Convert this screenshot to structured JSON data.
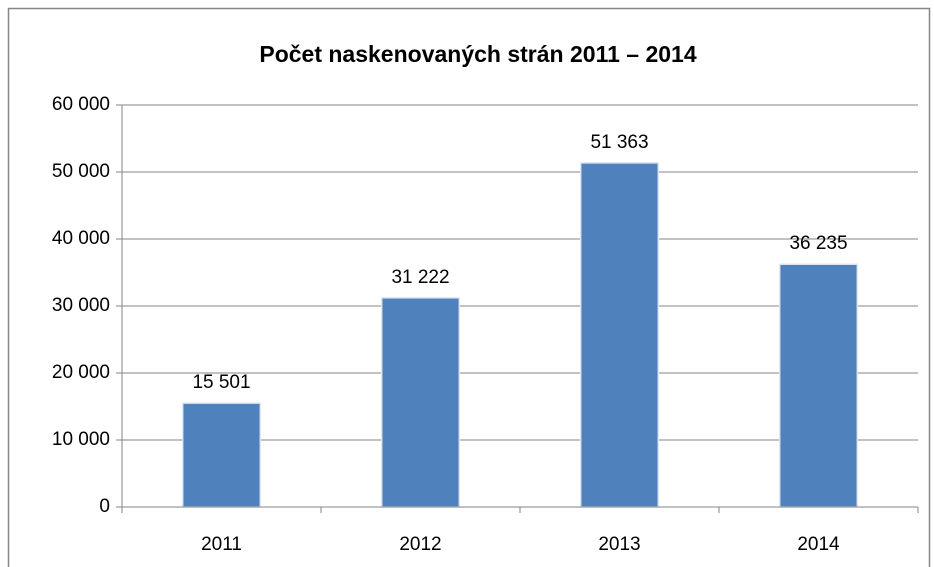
{
  "chart_data": {
    "type": "bar",
    "title": "Počet naskenovaných strán 2011 – 2014",
    "categories": [
      "2011",
      "2012",
      "2013",
      "2014"
    ],
    "values": [
      15501,
      31222,
      51363,
      36235
    ],
    "value_labels": [
      "15 501",
      "31 222",
      "51 363",
      "36 235"
    ],
    "color": "#4f81bd",
    "ylim": [
      0,
      60000
    ],
    "yticks": [
      0,
      {
        "value": 10000,
        "label": "10 000"
      },
      {
        "value": 20000,
        "label": "20 000"
      },
      {
        "value": 30000,
        "label": "30 000"
      },
      {
        "value": 40000,
        "label": "40 000"
      },
      {
        "value": 50000,
        "label": "50 000"
      },
      {
        "value": 60000,
        "label": "60 000"
      }
    ],
    "grid": true
  }
}
